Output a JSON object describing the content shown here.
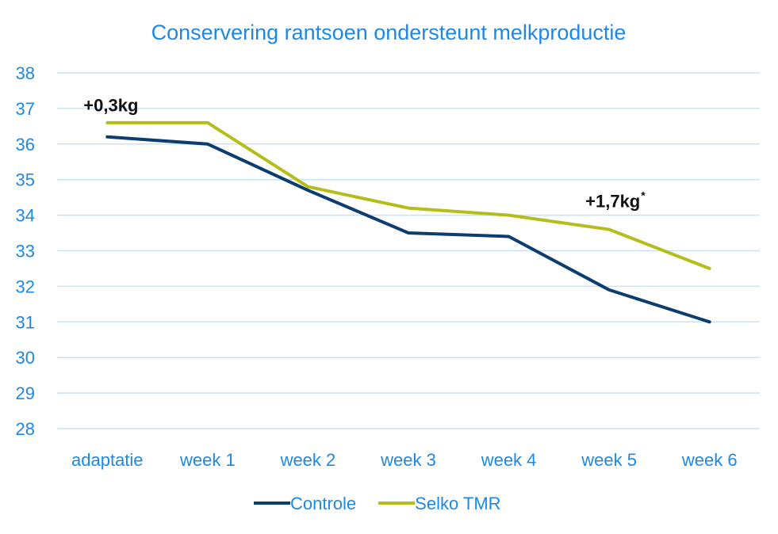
{
  "colors": {
    "text_blue": "#1e88e5",
    "grid": "#c9e2f6",
    "controle": "#0b3d6e",
    "selko": "#b5bd1a",
    "annotation": "#111111"
  },
  "chart_data": {
    "type": "line",
    "title": "Conservering rantsoen ondersteunt melkproductie",
    "xlabel": "",
    "ylabel": "",
    "categories": [
      "adaptatie",
      "week 1",
      "week 2",
      "week 3",
      "week 4",
      "week 5",
      "week 6"
    ],
    "y_ticks": [
      "28",
      "29",
      "30",
      "31",
      "32",
      "33",
      "34",
      "35",
      "36",
      "37",
      "38"
    ],
    "ylim": [
      28,
      38
    ],
    "grid": true,
    "legend_position": "bottom",
    "series": [
      {
        "name": "Controle",
        "color_key": "controle",
        "values": [
          36.2,
          36.0,
          34.7,
          33.5,
          33.4,
          31.9,
          31.0
        ]
      },
      {
        "name": "Selko TMR",
        "color_key": "selko",
        "values": [
          36.6,
          36.6,
          34.8,
          34.2,
          34.0,
          33.6,
          32.5
        ]
      }
    ],
    "annotations": [
      {
        "text": "+0,3kg",
        "sup": "",
        "category_index": 0,
        "value": 37.1
      },
      {
        "text": "+1,7kg",
        "sup": "*",
        "category_index": 5,
        "value": 34.4
      }
    ]
  }
}
